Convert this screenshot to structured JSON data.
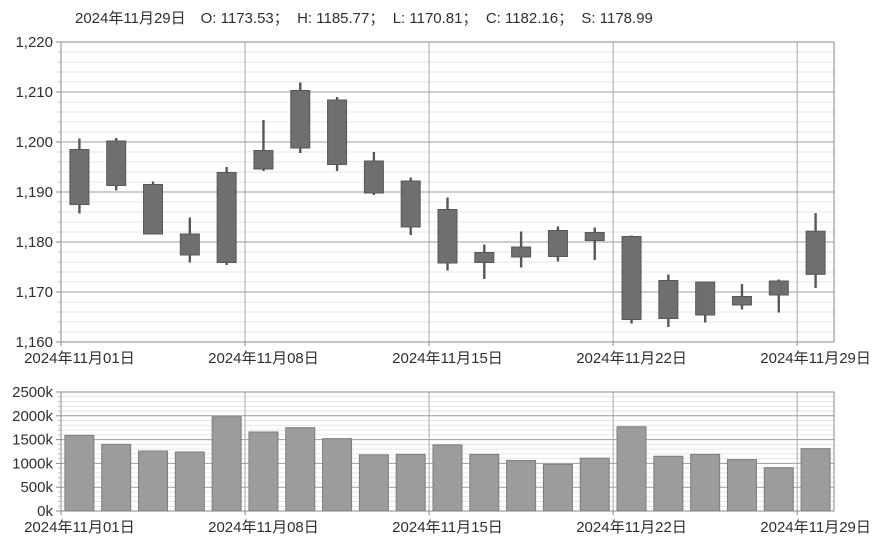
{
  "header": {
    "date": "2024年11月29日",
    "stats": [
      "O: 1173.53",
      "H: 1185.77",
      "L: 1170.81",
      "C: 1182.16",
      "S: 1178.99"
    ],
    "separator": "；  "
  },
  "colors": {
    "text": "#2f2f2f",
    "grid_minor": "#e6e6e6",
    "grid_major": "#9c9c9c",
    "grid_vertical": "#a8a8a8",
    "axis_border": "#8a8a8a",
    "minor_tick": "#bbbbbb",
    "candle_fill": "#6f6f6f",
    "candle_stroke": "#575757",
    "bar_fill": "#9c9c9c",
    "bar_stroke": "#7c7c7c"
  },
  "chart_data": [
    {
      "type": "candlestick",
      "ylim": [
        1160,
        1220
      ],
      "y_tick_values": [
        1160,
        1170,
        1180,
        1190,
        1200,
        1210,
        1220
      ],
      "y_tick_labels": [
        "1,160",
        "1,170",
        "1,180",
        "1,190",
        "1,200",
        "1,210",
        "1,220"
      ],
      "y_minor_step": 2,
      "grid": true,
      "x_tick_labels": [
        "2024年11月01日",
        "2024年11月08日",
        "2024年11月15日",
        "2024年11月22日",
        "2024年11月29日"
      ],
      "x_tick_indices": [
        0,
        5,
        10,
        15,
        20
      ],
      "candles": [
        {
          "high": 1200.7,
          "low": 1185.7,
          "body_top": 1198.5,
          "body_bottom": 1187.5
        },
        {
          "high": 1200.8,
          "low": 1190.3,
          "body_top": 1200.2,
          "body_bottom": 1191.3
        },
        {
          "high": 1192.1,
          "low": 1181.6,
          "body_top": 1191.5,
          "body_bottom": 1181.6
        },
        {
          "high": 1184.9,
          "low": 1175.9,
          "body_top": 1181.6,
          "body_bottom": 1177.4
        },
        {
          "high": 1195.0,
          "low": 1175.4,
          "body_top": 1193.9,
          "body_bottom": 1175.9
        },
        {
          "high": 1204.4,
          "low": 1194.2,
          "body_top": 1198.3,
          "body_bottom": 1194.6
        },
        {
          "high": 1211.9,
          "low": 1197.8,
          "body_top": 1210.3,
          "body_bottom": 1198.8
        },
        {
          "high": 1209.0,
          "low": 1194.2,
          "body_top": 1208.4,
          "body_bottom": 1195.5
        },
        {
          "high": 1198.0,
          "low": 1189.4,
          "body_top": 1196.2,
          "body_bottom": 1189.8
        },
        {
          "high": 1192.9,
          "low": 1181.4,
          "body_top": 1192.2,
          "body_bottom": 1183.0
        },
        {
          "high": 1188.9,
          "low": 1174.3,
          "body_top": 1186.5,
          "body_bottom": 1175.8
        },
        {
          "high": 1179.5,
          "low": 1172.6,
          "body_top": 1177.9,
          "body_bottom": 1175.9
        },
        {
          "high": 1182.1,
          "low": 1174.9,
          "body_top": 1179.0,
          "body_bottom": 1177.0
        },
        {
          "high": 1183.1,
          "low": 1176.1,
          "body_top": 1182.3,
          "body_bottom": 1177.1
        },
        {
          "high": 1182.9,
          "low": 1176.4,
          "body_top": 1181.9,
          "body_bottom": 1180.3
        },
        {
          "high": 1181.3,
          "low": 1163.7,
          "body_top": 1181.1,
          "body_bottom": 1164.5
        },
        {
          "high": 1173.5,
          "low": 1163.0,
          "body_top": 1172.3,
          "body_bottom": 1164.7
        },
        {
          "high": 1172.1,
          "low": 1163.9,
          "body_top": 1172.0,
          "body_bottom": 1165.4
        },
        {
          "high": 1171.6,
          "low": 1166.5,
          "body_top": 1169.1,
          "body_bottom": 1167.4
        },
        {
          "high": 1172.5,
          "low": 1165.9,
          "body_top": 1172.2,
          "body_bottom": 1169.4
        },
        {
          "high": 1185.77,
          "low": 1170.81,
          "body_top": 1182.16,
          "body_bottom": 1173.53
        }
      ]
    },
    {
      "type": "bar",
      "ylim": [
        0,
        2500
      ],
      "y_tick_values": [
        0,
        500,
        1000,
        1500,
        2000,
        2500
      ],
      "y_tick_labels": [
        "0k",
        "500k",
        "1000k",
        "1500k",
        "2000k",
        "2500k"
      ],
      "y_minor_step": 100,
      "grid": true,
      "x_tick_labels": [
        "2024年11月01日",
        "2024年11月08日",
        "2024年11月15日",
        "2024年11月22日",
        "2024年11月29日"
      ],
      "x_tick_indices": [
        0,
        5,
        10,
        15,
        20
      ],
      "values_k": [
        1590,
        1400,
        1260,
        1240,
        1980,
        1660,
        1750,
        1520,
        1180,
        1190,
        1390,
        1190,
        1060,
        980,
        1110,
        1770,
        1150,
        1190,
        1080,
        910,
        1310
      ]
    }
  ]
}
